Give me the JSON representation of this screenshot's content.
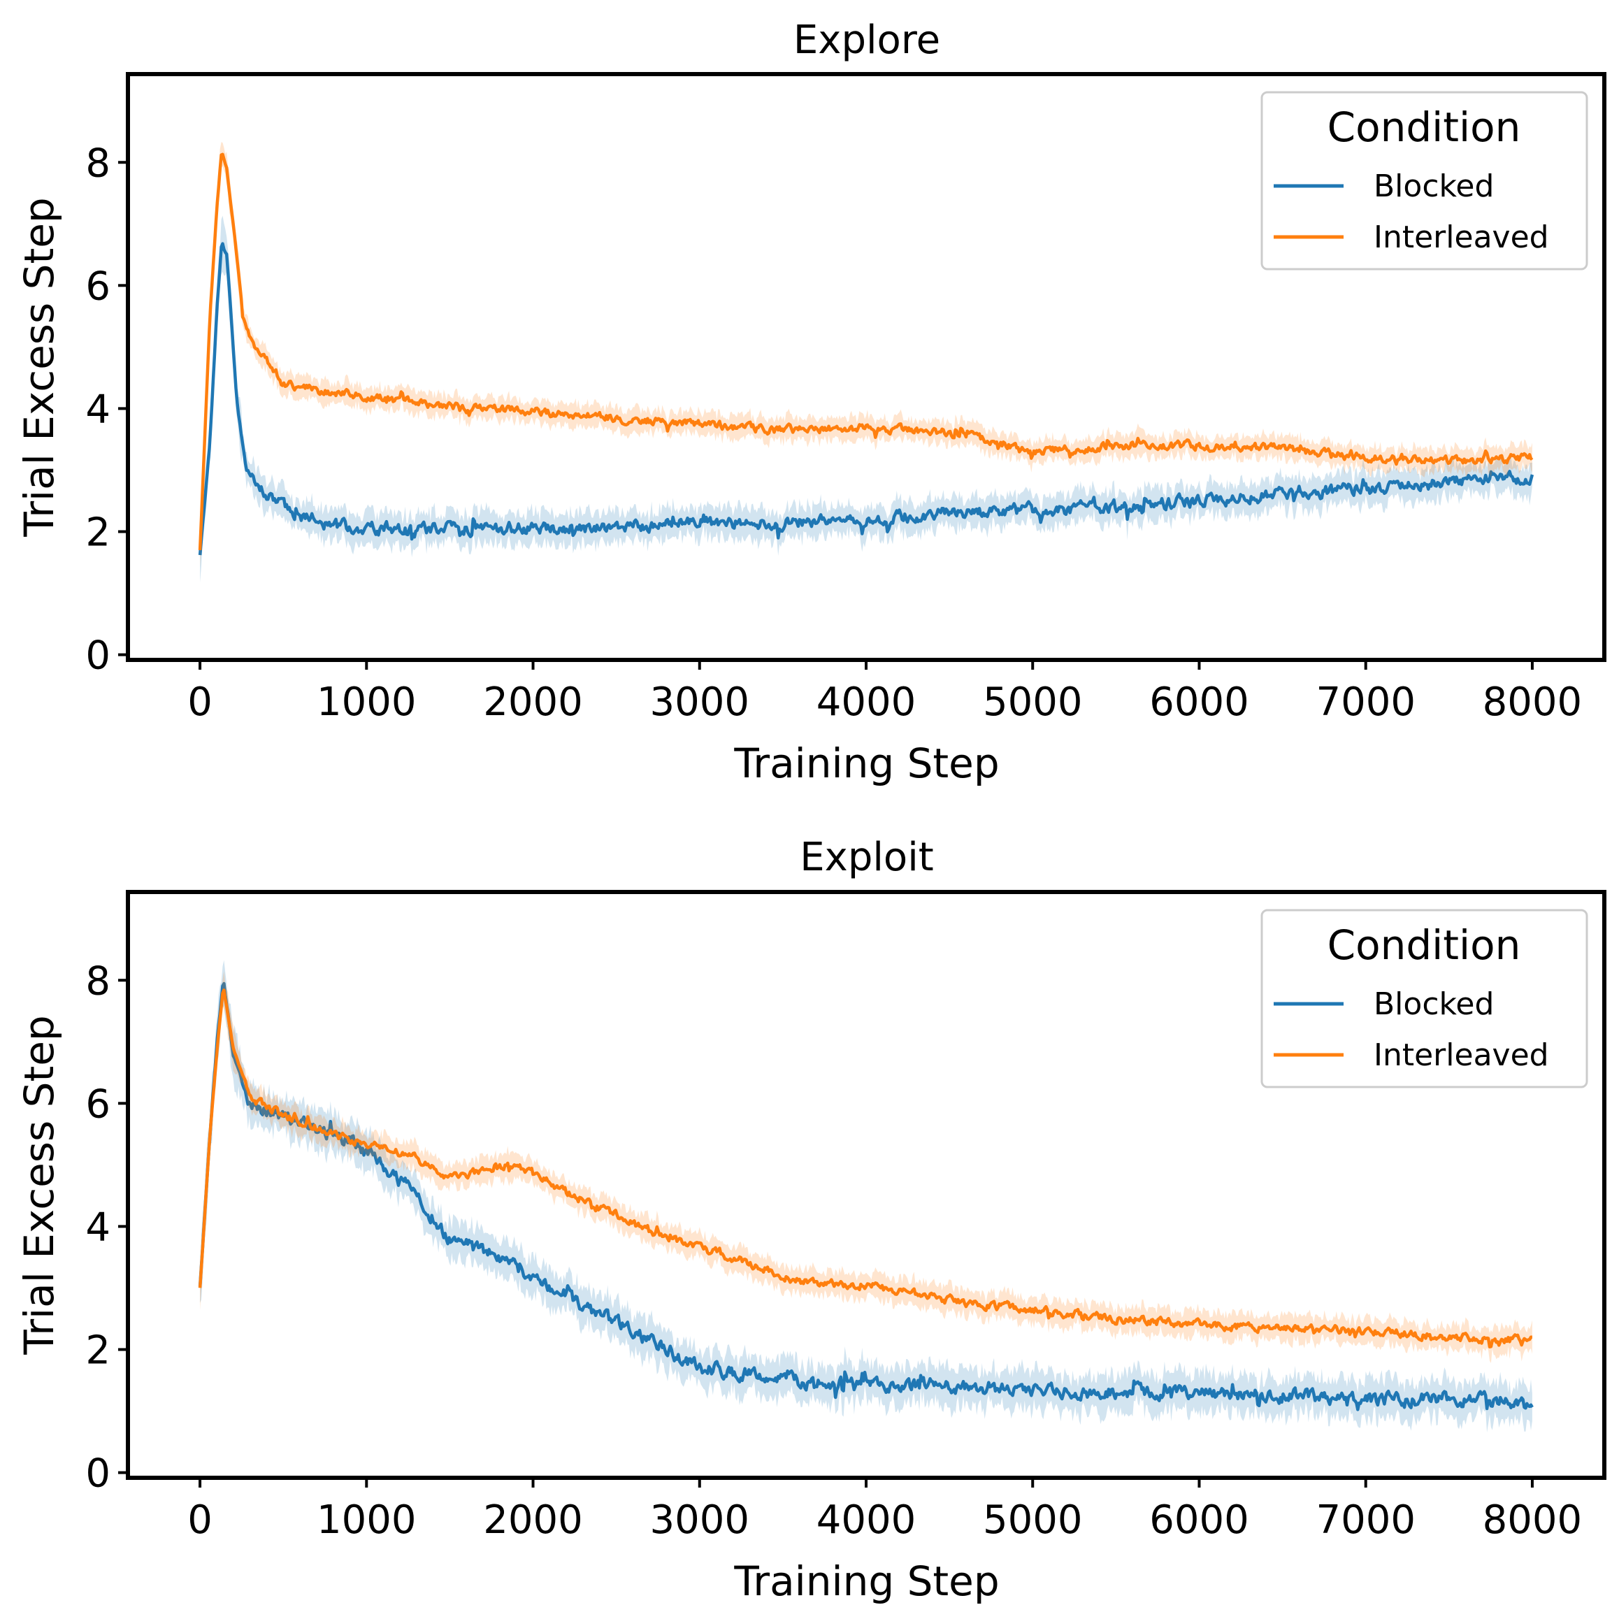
{
  "colors": {
    "blocked": "#1f77b4",
    "interleaved": "#ff7f0e",
    "axis": "#000000",
    "legend_border": "#cccccc"
  },
  "chart_data": [
    {
      "type": "line",
      "title": "Explore",
      "xlabel": "Training Step",
      "ylabel": "Trial Excess Step",
      "xlim": [
        -420,
        8420
      ],
      "ylim": [
        -0.05,
        9.4
      ],
      "xticks": [
        0,
        1000,
        2000,
        3000,
        4000,
        5000,
        6000,
        7000,
        8000
      ],
      "xtick_labels": [
        "0",
        "1000",
        "2000",
        "3000",
        "4000",
        "5000",
        "6000",
        "7000",
        "8000"
      ],
      "yticks": [
        0,
        2,
        4,
        6,
        8
      ],
      "ytick_labels": [
        "0",
        "2",
        "4",
        "6",
        "8"
      ],
      "grid": false,
      "legend": {
        "title": "Condition",
        "position": "top-right"
      },
      "series": [
        {
          "name": "Blocked",
          "color_key": "blocked",
          "x": [
            0,
            60,
            100,
            130,
            160,
            190,
            220,
            260,
            300,
            400,
            500,
            600,
            800,
            1000,
            1200,
            1500,
            1800,
            2000,
            2300,
            2600,
            3000,
            3500,
            4000,
            4500,
            5000,
            5500,
            6000,
            6500,
            7000,
            7500,
            8000
          ],
          "y": [
            1.6,
            3.5,
            5.5,
            6.7,
            6.5,
            5.4,
            4.2,
            3.3,
            2.9,
            2.6,
            2.4,
            2.25,
            2.1,
            2.05,
            2.05,
            2.05,
            2.05,
            2.05,
            2.05,
            2.1,
            2.15,
            2.15,
            2.2,
            2.3,
            2.35,
            2.4,
            2.5,
            2.6,
            2.7,
            2.8,
            2.9
          ],
          "noise": 0.18,
          "band": 0.25
        },
        {
          "name": "Interleaved",
          "color_key": "interleaved",
          "x": [
            0,
            60,
            100,
            130,
            160,
            200,
            260,
            330,
            400,
            500,
            700,
            1000,
            1300,
            1600,
            1800,
            2000,
            2500,
            3000,
            3500,
            4000,
            4500,
            4800,
            5000,
            5500,
            6000,
            6500,
            7000,
            7500,
            8000
          ],
          "y": [
            1.7,
            5.5,
            7.2,
            8.2,
            7.9,
            7.0,
            5.5,
            5.0,
            4.8,
            4.4,
            4.3,
            4.2,
            4.1,
            4.0,
            4.0,
            3.95,
            3.85,
            3.75,
            3.65,
            3.7,
            3.6,
            3.45,
            3.3,
            3.4,
            3.4,
            3.35,
            3.2,
            3.15,
            3.2
          ],
          "noise": 0.12,
          "band": 0.18
        }
      ]
    },
    {
      "type": "line",
      "title": "Exploit",
      "xlabel": "Training Step",
      "ylabel": "Trial Excess Step",
      "xlim": [
        -420,
        8420
      ],
      "ylim": [
        -0.05,
        9.4
      ],
      "xticks": [
        0,
        1000,
        2000,
        3000,
        4000,
        5000,
        6000,
        7000,
        8000
      ],
      "xtick_labels": [
        "0",
        "1000",
        "2000",
        "3000",
        "4000",
        "5000",
        "6000",
        "7000",
        "8000"
      ],
      "yticks": [
        0,
        2,
        4,
        6,
        8
      ],
      "ytick_labels": [
        "0",
        "2",
        "4",
        "6",
        "8"
      ],
      "grid": false,
      "legend": {
        "title": "Condition",
        "position": "top-right"
      },
      "series": [
        {
          "name": "Blocked",
          "color_key": "blocked",
          "x": [
            0,
            60,
            100,
            140,
            200,
            300,
            500,
            700,
            900,
            1100,
            1300,
            1500,
            1700,
            2000,
            2300,
            2600,
            3000,
            3300,
            3600,
            4000,
            4500,
            5000,
            5500,
            6000,
            6500,
            7000,
            7500,
            8000
          ],
          "y": [
            3.0,
            5.5,
            6.9,
            8.0,
            6.8,
            6.0,
            5.8,
            5.6,
            5.4,
            5.0,
            4.5,
            3.8,
            3.6,
            3.2,
            2.7,
            2.3,
            1.7,
            1.6,
            1.5,
            1.45,
            1.4,
            1.35,
            1.3,
            1.3,
            1.25,
            1.2,
            1.2,
            1.15
          ],
          "noise": 0.2,
          "band": 0.3
        },
        {
          "name": "Interleaved",
          "color_key": "interleaved",
          "x": [
            0,
            60,
            100,
            140,
            200,
            300,
            500,
            700,
            900,
            1100,
            1300,
            1500,
            1700,
            1900,
            2100,
            2300,
            2500,
            2700,
            3000,
            3300,
            3600,
            4000,
            4300,
            4600,
            5000,
            5500,
            6000,
            6500,
            7000,
            7500,
            8000
          ],
          "y": [
            3.0,
            5.5,
            6.8,
            7.9,
            6.9,
            6.1,
            5.8,
            5.6,
            5.4,
            5.3,
            5.1,
            4.8,
            4.9,
            5.0,
            4.7,
            4.4,
            4.2,
            3.9,
            3.65,
            3.4,
            3.1,
            3.05,
            2.9,
            2.75,
            2.65,
            2.5,
            2.4,
            2.35,
            2.3,
            2.2,
            2.15
          ],
          "noise": 0.12,
          "band": 0.2
        }
      ]
    }
  ]
}
